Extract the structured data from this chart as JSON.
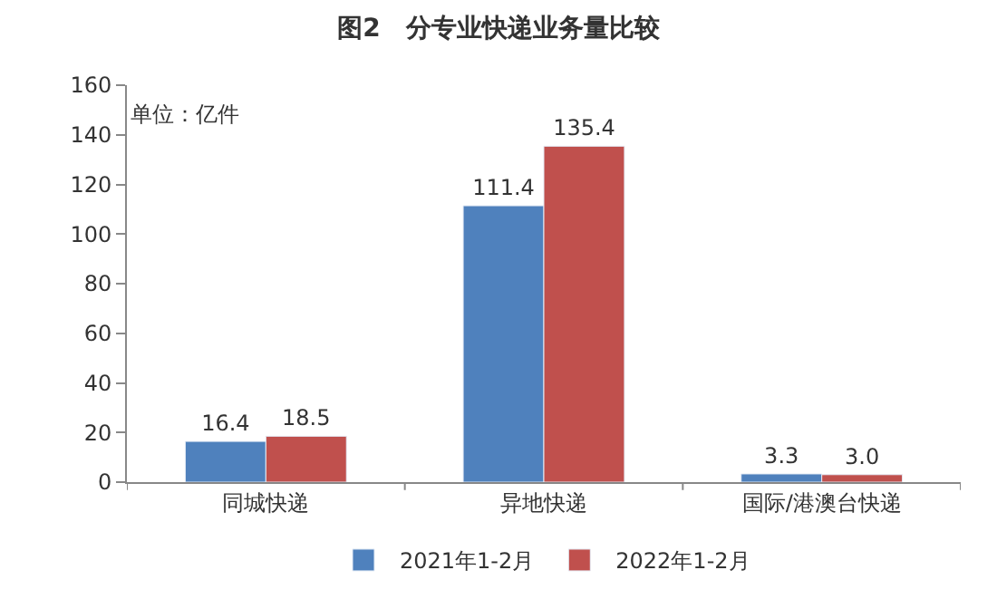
{
  "chart_data": {
    "type": "bar",
    "title": "图2　分专业快递业务量比较",
    "categories": [
      "同城快递",
      "异地快递",
      "国际/港澳台快递"
    ],
    "series": [
      {
        "name": "2021年1-2月",
        "color": "#4f81bd",
        "values": [
          16.4,
          111.4,
          3.3
        ]
      },
      {
        "name": "2022年1-2月",
        "color": "#c0504d",
        "values": [
          18.5,
          135.4,
          3.0
        ]
      }
    ],
    "value_labels": [
      [
        "16.4",
        "111.4",
        "3.3"
      ],
      [
        "18.5",
        "135.4",
        "3.0"
      ]
    ],
    "ylim": [
      0,
      160
    ],
    "yticks": [
      0,
      20,
      40,
      60,
      80,
      100,
      120,
      140,
      160
    ],
    "legend": "bottom",
    "annotations": [
      "单位：亿件"
    ]
  }
}
